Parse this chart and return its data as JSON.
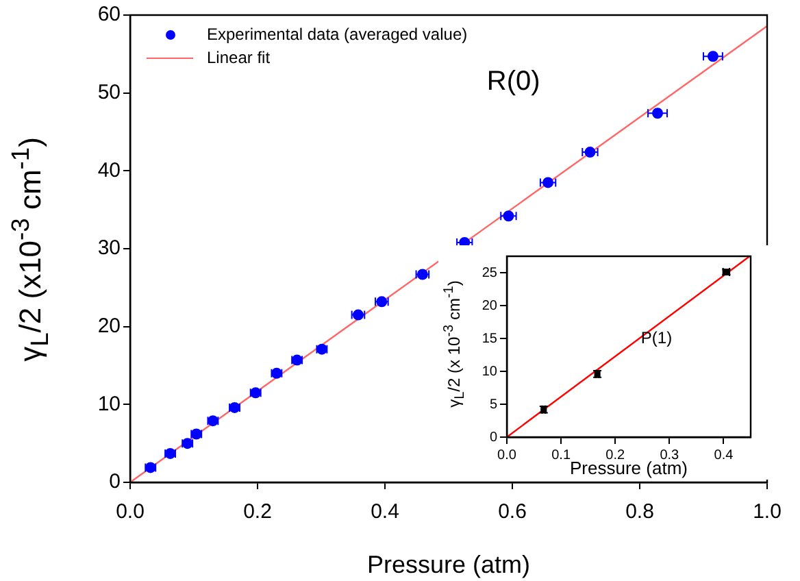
{
  "chart_data": [
    {
      "type": "scatter",
      "xlabel": "Pressure (atm)",
      "ylabel": "γ$_{L}$/2 (x10$^{-3}$ cm$^{-1}$)",
      "annotations": [
        "R(0)"
      ],
      "legend": "top left",
      "grid": false,
      "xlim": [
        0,
        1
      ],
      "xticks": [
        {
          "value": 0,
          "label": "0.0"
        },
        {
          "value": 0.2,
          "label": "0.2"
        },
        {
          "value": 0.4,
          "label": "0.4"
        },
        {
          "value": 0.6,
          "label": "0.6"
        },
        {
          "value": 0.8,
          "label": "0.8"
        },
        {
          "value": 1,
          "label": "1.0"
        }
      ],
      "ylim": [
        0,
        60
      ],
      "yticks": [
        0,
        10,
        20,
        30,
        40,
        50,
        60
      ],
      "series": [
        {
          "name": "Experimental data (averaged value)",
          "marker": "circle",
          "color": "#0000ff",
          "x": [
            0.032,
            0.063,
            0.09,
            0.104,
            0.13,
            0.164,
            0.197,
            0.23,
            0.262,
            0.301,
            0.358,
            0.395,
            0.459,
            0.525,
            0.594,
            0.656,
            0.722,
            0.828,
            0.915
          ],
          "values": [
            1.9,
            3.7,
            5.0,
            6.2,
            7.9,
            9.6,
            11.5,
            14.0,
            15.7,
            17.1,
            21.5,
            23.2,
            26.7,
            30.8,
            34.2,
            38.5,
            42.4,
            47.4,
            54.7
          ],
          "xerrors": [
            0.008,
            0.008,
            0.008,
            0.008,
            0.008,
            0.008,
            0.008,
            0.008,
            0.008,
            0.008,
            0.01,
            0.01,
            0.01,
            0.012,
            0.012,
            0.012,
            0.012,
            0.015,
            0.015
          ]
        },
        {
          "type": "line",
          "name": "Linear fit",
          "color": "#ff6666",
          "line_style": "solid",
          "x": [
            0,
            1
          ],
          "values": [
            0,
            58.6
          ]
        }
      ]
    },
    {
      "type": "scatter",
      "xlabel": "Pressure (atm)",
      "ylabel": "γ$_{L}$/2 (x 10$^{-3}$ cm$^{-1}$)",
      "annotations": [
        "P(1)"
      ],
      "grid": false,
      "xlim": [
        0,
        0.45
      ],
      "xticks": [
        {
          "value": 0,
          "label": "0.0"
        },
        {
          "value": 0.1,
          "label": "0.1"
        },
        {
          "value": 0.2,
          "label": "0.2"
        },
        {
          "value": 0.3,
          "label": "0.3"
        },
        {
          "value": 0.4,
          "label": "0.4"
        }
      ],
      "ylim": [
        0,
        27.5
      ],
      "yticks": [
        0,
        5,
        10,
        15,
        20,
        25
      ],
      "series": [
        {
          "marker": "square",
          "color": "#000000",
          "x": [
            0.068,
            0.167,
            0.405
          ],
          "values": [
            4.2,
            9.6,
            25.1
          ],
          "errors": [
            0.5,
            0.5,
            0.4
          ],
          "xerrors": [
            0.003,
            0.003,
            0.006
          ]
        },
        {
          "type": "line",
          "color": "#ff0000",
          "line_style": "solid",
          "x": [
            0,
            0.448
          ],
          "values": [
            0,
            27.5
          ]
        }
      ]
    }
  ]
}
